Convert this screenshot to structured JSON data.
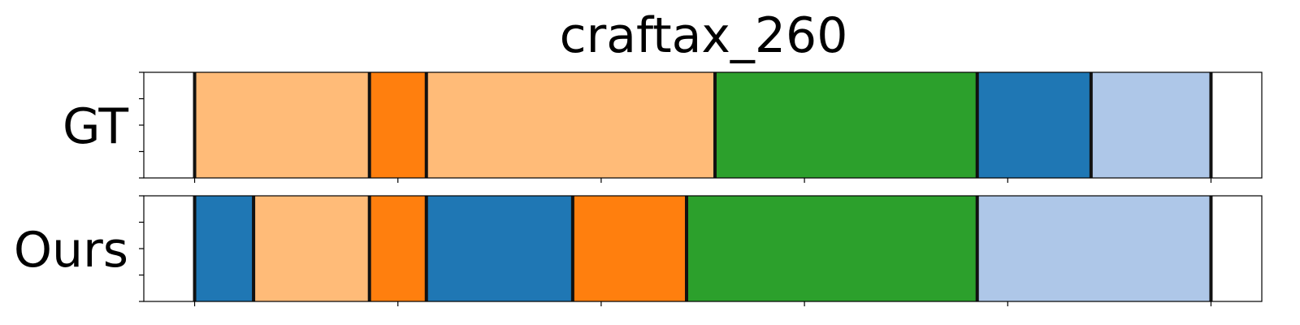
{
  "chart_data": {
    "type": "segmentation-timeline",
    "title": "craftax_260",
    "x_range": [
      0,
      55
    ],
    "x_ticks": [
      2.5,
      12.5,
      22.5,
      32.5,
      42.5,
      52.5
    ],
    "rows": [
      {
        "label": "GT",
        "segments": [
          {
            "start": 2.5,
            "end": 11.1,
            "color": "#ffbb78"
          },
          {
            "start": 11.1,
            "end": 13.9,
            "color": "#ff7f0e"
          },
          {
            "start": 13.9,
            "end": 28.1,
            "color": "#ffbb78"
          },
          {
            "start": 28.1,
            "end": 41.0,
            "color": "#2ca02c"
          },
          {
            "start": 41.0,
            "end": 46.6,
            "color": "#1f77b4"
          },
          {
            "start": 46.6,
            "end": 52.5,
            "color": "#aec7e8"
          }
        ]
      },
      {
        "label": "Ours",
        "segments": [
          {
            "start": 2.5,
            "end": 5.4,
            "color": "#1f77b4"
          },
          {
            "start": 5.4,
            "end": 11.1,
            "color": "#ffbb78"
          },
          {
            "start": 11.1,
            "end": 13.9,
            "color": "#ff7f0e"
          },
          {
            "start": 13.9,
            "end": 21.1,
            "color": "#1f77b4"
          },
          {
            "start": 21.1,
            "end": 26.7,
            "color": "#ff7f0e"
          },
          {
            "start": 26.7,
            "end": 41.0,
            "color": "#2ca02c"
          },
          {
            "start": 41.0,
            "end": 52.5,
            "color": "#aec7e8"
          }
        ]
      }
    ]
  }
}
